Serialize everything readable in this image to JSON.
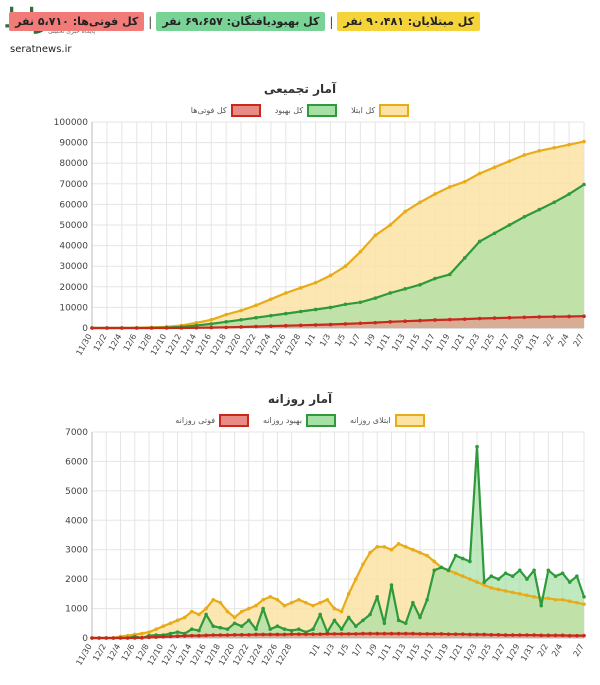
{
  "logo": {
    "mark": "صراط",
    "tagline": "پایگاه خبری تحلیلی",
    "url": "seratnews.ir"
  },
  "badges": [
    {
      "label": "کل مبتلایان: ۹۰،۴۸۱ نفر",
      "color": "#f5d33b"
    },
    {
      "label": "کل بهبودیافتگان: ۶۹،۶۵۷ نفر",
      "color": "#79d397"
    },
    {
      "label": "کل فوتی‌ها: ۵،۷۱۰ نفر",
      "color": "#f07b79"
    }
  ],
  "separators": [
    "|",
    "|"
  ],
  "colors": {
    "confirmed": "#e8ab1a",
    "confirmed_fill": "#fbe3a4",
    "recovered": "#2e9a3b",
    "recovered_fill": "#a7e0a4",
    "deaths": "#c9281c",
    "deaths_fill": "#e88b85",
    "grid": "#e5e5e5"
  },
  "chart_data": [
    {
      "type": "area",
      "title": "آمار تجمیعی",
      "legend": [
        "کل ابتلا",
        "کل بهبود",
        "کل فوتی‌ها"
      ],
      "legend_placement": "top-center",
      "ylim": [
        0,
        100000
      ],
      "yticks": [
        0,
        10000,
        20000,
        30000,
        40000,
        50000,
        60000,
        70000,
        80000,
        90000,
        100000
      ],
      "grid": true,
      "x_tick_labels": [
        "11/30",
        "12/2",
        "12/4",
        "12/6",
        "12/8",
        "12/10",
        "12/12",
        "12/14",
        "12/16",
        "12/18",
        "12/20",
        "12/22",
        "12/24",
        "12/26",
        "12/28",
        "1/1",
        "1/3",
        "1/5",
        "1/7",
        "1/9",
        "1/11",
        "1/13",
        "1/15",
        "1/17",
        "1/19",
        "1/21",
        "1/23",
        "1/25",
        "1/27",
        "1/29",
        "1/31",
        "2/2",
        "2/4",
        "2/7"
      ],
      "x": [
        "11/30",
        "12/2",
        "12/4",
        "12/6",
        "12/8",
        "12/10",
        "12/12",
        "12/14",
        "12/16",
        "12/18",
        "12/20",
        "12/22",
        "12/24",
        "12/26",
        "12/28",
        "1/1",
        "1/3",
        "1/5",
        "1/7",
        "1/9",
        "1/11",
        "1/13",
        "1/15",
        "1/17",
        "1/19",
        "1/21",
        "1/23",
        "1/25",
        "1/27",
        "1/29",
        "1/31",
        "2/2",
        "2/4",
        "2/7"
      ],
      "series": [
        {
          "name": "کل ابتلا",
          "values": [
            0,
            0,
            0,
            100,
            300,
            600,
            1200,
            2500,
            4000,
            6500,
            8500,
            11000,
            14000,
            17000,
            19500,
            22000,
            25500,
            30000,
            37000,
            45000,
            50000,
            56500,
            61000,
            65000,
            68500,
            71000,
            75000,
            78000,
            81000,
            84000,
            86000,
            87500,
            89000,
            90481
          ]
        },
        {
          "name": "کل بهبود",
          "values": [
            0,
            0,
            0,
            0,
            0,
            200,
            500,
            1200,
            2000,
            3000,
            4000,
            5000,
            6000,
            7000,
            8000,
            9000,
            10000,
            11500,
            12500,
            14500,
            17000,
            19000,
            21000,
            24000,
            26000,
            34000,
            42000,
            46000,
            50000,
            54000,
            57500,
            61000,
            65000,
            69657
          ]
        },
        {
          "name": "کل فوتی‌ها",
          "values": [
            0,
            0,
            0,
            0,
            0,
            0,
            0,
            100,
            200,
            300,
            500,
            700,
            900,
            1100,
            1300,
            1500,
            1700,
            2000,
            2300,
            2600,
            3000,
            3300,
            3600,
            3900,
            4100,
            4300,
            4600,
            4800,
            5000,
            5200,
            5400,
            5500,
            5600,
            5710
          ]
        }
      ]
    },
    {
      "type": "area",
      "title": "آمار روزانه",
      "legend": [
        "ابتلای روزانه",
        "بهبود روزانه",
        "فوتی روزانه"
      ],
      "legend_placement": "top-center",
      "ylim": [
        0,
        7000
      ],
      "yticks": [
        0,
        1000,
        2000,
        3000,
        4000,
        5000,
        6000,
        7000
      ],
      "grid": true,
      "x_tick_labels": [
        "11/30",
        "12/2",
        "12/4",
        "12/6",
        "12/8",
        "12/10",
        "12/12",
        "12/14",
        "12/16",
        "12/18",
        "12/20",
        "12/22",
        "12/24",
        "12/26",
        "12/28",
        "1/1",
        "1/3",
        "1/5",
        "1/7",
        "1/9",
        "1/11",
        "1/13",
        "1/15",
        "1/17",
        "1/19",
        "1/21",
        "1/23",
        "1/25",
        "1/27",
        "1/29",
        "1/31",
        "2/2",
        "2/4",
        "2/7"
      ],
      "x": [
        "11/30",
        "12/1",
        "12/2",
        "12/3",
        "12/4",
        "12/5",
        "12/6",
        "12/7",
        "12/8",
        "12/9",
        "12/10",
        "12/11",
        "12/12",
        "12/13",
        "12/14",
        "12/15",
        "12/16",
        "12/17",
        "12/18",
        "12/19",
        "12/20",
        "12/21",
        "12/22",
        "12/23",
        "12/24",
        "12/25",
        "12/26",
        "12/27",
        "12/28",
        "12/29",
        "12/30",
        "12/31",
        "1/1",
        "1/2",
        "1/3",
        "1/4",
        "1/5",
        "1/6",
        "1/7",
        "1/8",
        "1/9",
        "1/10",
        "1/11",
        "1/12",
        "1/13",
        "1/14",
        "1/15",
        "1/16",
        "1/17",
        "1/18",
        "1/19",
        "1/20",
        "1/21",
        "1/22",
        "1/23",
        "1/24",
        "1/25",
        "1/26",
        "1/27",
        "1/28",
        "1/29",
        "1/30",
        "1/31",
        "2/1",
        "2/2",
        "2/3",
        "2/4",
        "2/5",
        "2/6",
        "2/7"
      ],
      "series": [
        {
          "name": "ابتلای روزانه",
          "values": [
            0,
            0,
            0,
            0,
            50,
            80,
            120,
            150,
            200,
            300,
            400,
            500,
            600,
            700,
            900,
            800,
            1000,
            1300,
            1200,
            900,
            700,
            900,
            1000,
            1100,
            1300,
            1400,
            1300,
            1100,
            1200,
            1300,
            1200,
            1100,
            1200,
            1300,
            1000,
            900,
            1500,
            2000,
            2500,
            2900,
            3100,
            3100,
            3000,
            3200,
            3100,
            3000,
            2900,
            2800,
            2600,
            2400,
            2300,
            2200,
            2100,
            2000,
            1900,
            1800,
            1700,
            1650,
            1600,
            1550,
            1500,
            1450,
            1400,
            1350,
            1350,
            1300,
            1300,
            1250,
            1200,
            1150
          ]
        },
        {
          "name": "بهبود روزانه",
          "values": [
            0,
            0,
            0,
            0,
            0,
            0,
            50,
            0,
            80,
            100,
            100,
            150,
            200,
            150,
            300,
            250,
            800,
            400,
            350,
            300,
            500,
            400,
            600,
            300,
            1000,
            300,
            400,
            300,
            250,
            300,
            200,
            300,
            800,
            200,
            600,
            300,
            700,
            400,
            600,
            800,
            1400,
            500,
            1800,
            600,
            500,
            1200,
            700,
            1300,
            2300,
            2400,
            2300,
            2800,
            2700,
            2600,
            6500,
            1900,
            2100,
            2000,
            2200,
            2100,
            2300,
            2000,
            2300,
            1100,
            2300,
            2100,
            2200,
            1900,
            2100,
            1400
          ]
        },
        {
          "name": "فوتی روزانه",
          "values": [
            0,
            0,
            0,
            0,
            0,
            0,
            0,
            10,
            20,
            30,
            40,
            50,
            60,
            70,
            80,
            80,
            90,
            100,
            100,
            100,
            110,
            110,
            110,
            120,
            120,
            120,
            120,
            120,
            130,
            130,
            130,
            130,
            130,
            140,
            140,
            140,
            140,
            140,
            150,
            150,
            150,
            150,
            150,
            150,
            150,
            150,
            140,
            140,
            140,
            140,
            130,
            130,
            130,
            120,
            120,
            120,
            110,
            110,
            100,
            100,
            100,
            100,
            100,
            90,
            90,
            90,
            90,
            80,
            80,
            80
          ]
        }
      ]
    }
  ]
}
